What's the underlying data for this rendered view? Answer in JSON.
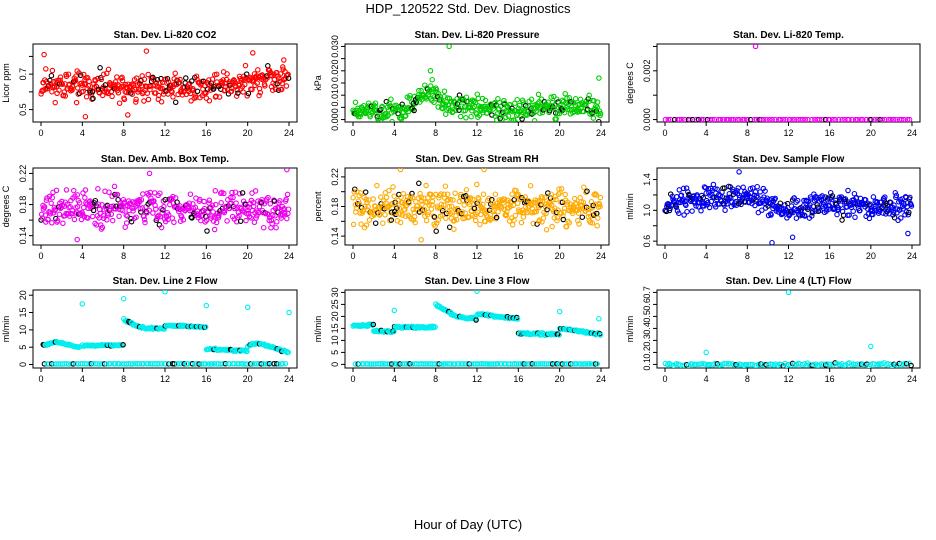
{
  "figure": {
    "title": "HDP_120522  Std. Dev. Diagnostics",
    "bottom_label": "Hour of Day (UTC)"
  },
  "chart_data": [
    {
      "type": "scatter",
      "title": "Stan. Dev. Li-820 CO2",
      "ylabel": "Licor ppm",
      "xlim": [
        0,
        24
      ],
      "xticks": [
        0,
        4,
        8,
        12,
        16,
        20,
        24
      ],
      "ylim": [
        0.43,
        0.87
      ],
      "yticks": [
        0.5,
        0.7
      ],
      "ytick_labels": [
        "0.5",
        "0.7"
      ],
      "ytick_minor": [
        0.6,
        0.8
      ],
      "color": "#ff0000",
      "series": [
        {
          "n": 420,
          "x0": 0,
          "x1": 24,
          "base": [
            [
              0,
              0.65
            ],
            [
              4,
              0.63
            ],
            [
              8,
              0.62
            ],
            [
              12,
              0.63
            ],
            [
              16,
              0.62
            ],
            [
              20,
              0.66
            ],
            [
              24,
              0.68
            ]
          ],
          "spread": 0.07,
          "seed": 11
        }
      ],
      "outliers": [
        [
          0.3,
          0.81
        ],
        [
          4.3,
          0.46
        ],
        [
          8.4,
          0.47
        ],
        [
          10.2,
          0.83
        ],
        [
          20.5,
          0.82
        ],
        [
          23.5,
          0.78
        ]
      ]
    },
    {
      "type": "scatter",
      "title": "Stan. Dev. Li-820 Pressure",
      "ylabel": "kPa",
      "xlim": [
        0,
        24
      ],
      "xticks": [
        0,
        4,
        8,
        12,
        16,
        20,
        24
      ],
      "ylim": [
        -0.001,
        0.031
      ],
      "yticks": [
        0,
        0.005,
        0.01,
        0.015,
        0.02,
        0.025,
        0.03
      ],
      "ytick_labels": [
        "0.000",
        "",
        "0.010",
        "",
        "0.020",
        "",
        "0.030"
      ],
      "color": "#00cc00",
      "series": [
        {
          "n": 420,
          "x0": 0,
          "x1": 24,
          "base": [
            [
              0,
              0.004
            ],
            [
              5,
              0.004
            ],
            [
              7.5,
              0.012
            ],
            [
              9,
              0.006
            ],
            [
              12,
              0.005
            ],
            [
              16,
              0.004
            ],
            [
              20,
              0.005
            ],
            [
              24,
              0.005
            ]
          ],
          "spread": 0.004,
          "seed": 23
        }
      ],
      "outliers": [
        [
          7.5,
          0.02
        ],
        [
          9.3,
          0.03
        ],
        [
          23.8,
          0.017
        ]
      ]
    },
    {
      "type": "scatter",
      "title": "Stan. Dev. Li-820 Temp.",
      "ylabel": "degrees C",
      "xlim": [
        0,
        24
      ],
      "xticks": [
        0,
        4,
        8,
        12,
        16,
        20,
        24
      ],
      "ylim": [
        -0.0001,
        0.0031
      ],
      "yticks": [
        0,
        0.001,
        0.002,
        0.003
      ],
      "ytick_labels": [
        "0.000",
        "",
        "0.002",
        ""
      ],
      "color": "#ee00ee",
      "series": [
        {
          "n": 90,
          "x0": 0,
          "x1": 24,
          "base": [
            [
              0,
              0
            ],
            [
              24,
              0
            ]
          ],
          "spread": 0,
          "seed": 5
        }
      ],
      "outliers": [
        [
          8.8,
          0.003
        ]
      ]
    },
    {
      "type": "scatter",
      "title": "Stan. Dev. Amb. Box Temp.",
      "ylabel": "degrees C",
      "xlim": [
        0,
        24
      ],
      "xticks": [
        0,
        4,
        8,
        12,
        16,
        20,
        24
      ],
      "ylim": [
        0.128,
        0.227
      ],
      "yticks": [
        0.14,
        0.16,
        0.18,
        0.2,
        0.22
      ],
      "ytick_labels": [
        "0.14",
        "",
        "0.18",
        "",
        "0.22"
      ],
      "color": "#ee00ee",
      "series": [
        {
          "n": 420,
          "x0": 0,
          "x1": 24,
          "base": [
            [
              0,
              0.175
            ],
            [
              24,
              0.175
            ]
          ],
          "spread": 0.02,
          "seed": 37
        }
      ],
      "outliers": [
        [
          10.5,
          0.22
        ],
        [
          23.8,
          0.225
        ],
        [
          3.5,
          0.135
        ]
      ]
    },
    {
      "type": "scatter",
      "title": "Stan. Dev. Gas Stream RH",
      "ylabel": "percent",
      "xlim": [
        0,
        24
      ],
      "xticks": [
        0,
        4,
        8,
        12,
        16,
        20,
        24
      ],
      "ylim": [
        0.128,
        0.232
      ],
      "yticks": [
        0.14,
        0.16,
        0.18,
        0.2,
        0.22
      ],
      "ytick_labels": [
        "0.14",
        "",
        "0.18",
        "",
        "0.22"
      ],
      "color": "#ffaa00",
      "series": [
        {
          "n": 460,
          "x0": 0,
          "x1": 24,
          "base": [
            [
              0,
              0.178
            ],
            [
              24,
              0.178
            ]
          ],
          "spread": 0.022,
          "seed": 41
        }
      ],
      "outliers": [
        [
          4.6,
          0.23
        ],
        [
          12.7,
          0.23
        ],
        [
          6.6,
          0.135
        ]
      ]
    },
    {
      "type": "scatter",
      "title": "Stan. Dev. Sample Flow",
      "ylabel": "ml/min",
      "xlim": [
        0,
        24
      ],
      "xticks": [
        0,
        4,
        8,
        12,
        16,
        20,
        24
      ],
      "ylim": [
        0.55,
        1.55
      ],
      "yticks": [
        0.6,
        0.8,
        1.0,
        1.2,
        1.4
      ],
      "ytick_labels": [
        "0.6",
        "",
        "1.0",
        "",
        "1.4"
      ],
      "color": "#0000ee",
      "series": [
        {
          "n": 440,
          "x0": 0,
          "x1": 24,
          "base": [
            [
              0,
              1.1
            ],
            [
              4,
              1.15
            ],
            [
              7,
              1.2
            ],
            [
              9,
              1.15
            ],
            [
              12,
              1.0
            ],
            [
              16,
              1.08
            ],
            [
              20,
              1.05
            ],
            [
              24,
              1.05
            ]
          ],
          "spread": 0.14,
          "seed": 53
        }
      ],
      "outliers": [
        [
          10.4,
          0.58
        ],
        [
          12.4,
          0.65
        ],
        [
          23.6,
          0.7
        ],
        [
          7.2,
          1.5
        ]
      ]
    },
    {
      "type": "scatter",
      "title": "Stan. Dev. Line 2 Flow",
      "ylabel": "ml/min",
      "xlim": [
        0,
        24
      ],
      "xticks": [
        0,
        4,
        8,
        12,
        16,
        20,
        24
      ],
      "ylim": [
        -1,
        21.5
      ],
      "yticks": [
        0,
        5,
        10,
        15,
        20
      ],
      "ytick_labels": [
        "0",
        "5",
        "10",
        "15",
        "20"
      ],
      "color": "#00eeee",
      "series": [
        {
          "n": 40,
          "x0": 0.2,
          "x1": 3.8,
          "base": [
            [
              0.2,
              5.5
            ],
            [
              1.5,
              6.5
            ],
            [
              3.8,
              4.8
            ]
          ],
          "spread": 0.25,
          "seed": 61
        },
        {
          "n": 40,
          "x0": 4,
          "x1": 8,
          "base": [
            [
              4,
              5.5
            ],
            [
              8,
              5.6
            ]
          ],
          "spread": 0.2,
          "seed": 62
        },
        {
          "n": 40,
          "x0": 8,
          "x1": 12,
          "base": [
            [
              8,
              12.8
            ],
            [
              10,
              10.5
            ],
            [
              12,
              10.3
            ]
          ],
          "spread": 0.25,
          "seed": 63
        },
        {
          "n": 40,
          "x0": 12,
          "x1": 16,
          "base": [
            [
              12,
              11.3
            ],
            [
              16,
              10.8
            ]
          ],
          "spread": 0.2,
          "seed": 64
        },
        {
          "n": 40,
          "x0": 16,
          "x1": 20,
          "base": [
            [
              16,
              4.5
            ],
            [
              20,
              3.9
            ]
          ],
          "spread": 0.2,
          "seed": 65
        },
        {
          "n": 40,
          "x0": 20,
          "x1": 24,
          "base": [
            [
              20,
              5.5
            ],
            [
              21,
              6.2
            ],
            [
              24,
              3.5
            ]
          ],
          "spread": 0.25,
          "seed": 66
        },
        {
          "n": 110,
          "x0": 0.3,
          "x1": 23.8,
          "base": [
            [
              0,
              0.2
            ],
            [
              24,
              0.2
            ]
          ],
          "spread": 0.05,
          "seed": 67
        }
      ],
      "outliers": [
        [
          4,
          17.5
        ],
        [
          8,
          19
        ],
        [
          12,
          21
        ],
        [
          16,
          17
        ],
        [
          20,
          16.5
        ],
        [
          24,
          15
        ]
      ]
    },
    {
      "type": "scatter",
      "title": "Stan. Dev. Line 3 Flow",
      "ylabel": "ml/min",
      "xlim": [
        0,
        24
      ],
      "xticks": [
        0,
        4,
        8,
        12,
        16,
        20,
        24
      ],
      "ylim": [
        -1.5,
        31
      ],
      "yticks": [
        0,
        5,
        10,
        15,
        20,
        25,
        30
      ],
      "ytick_labels": [
        "0",
        "5",
        "10",
        "15",
        "20",
        "25",
        "30"
      ],
      "color": "#00eeee",
      "series": [
        {
          "n": 25,
          "x0": 0,
          "x1": 2,
          "base": [
            [
              0,
              16
            ],
            [
              2,
              16.5
            ]
          ],
          "spread": 0.4,
          "seed": 71
        },
        {
          "n": 25,
          "x0": 2,
          "x1": 4,
          "base": [
            [
              2,
              14
            ],
            [
              4,
              13.5
            ]
          ],
          "spread": 0.4,
          "seed": 72
        },
        {
          "n": 45,
          "x0": 4,
          "x1": 8,
          "base": [
            [
              4,
              15.5
            ],
            [
              8,
              15.5
            ]
          ],
          "spread": 0.4,
          "seed": 73
        },
        {
          "n": 45,
          "x0": 8,
          "x1": 12,
          "base": [
            [
              8,
              25
            ],
            [
              10,
              20
            ],
            [
              12,
              19
            ]
          ],
          "spread": 0.5,
          "seed": 74
        },
        {
          "n": 45,
          "x0": 12,
          "x1": 16,
          "base": [
            [
              12,
              21
            ],
            [
              16,
              19
            ]
          ],
          "spread": 0.4,
          "seed": 75
        },
        {
          "n": 45,
          "x0": 16,
          "x1": 20,
          "base": [
            [
              16,
              13
            ],
            [
              20,
              12.5
            ]
          ],
          "spread": 0.4,
          "seed": 76
        },
        {
          "n": 45,
          "x0": 20,
          "x1": 24,
          "base": [
            [
              20,
              15
            ],
            [
              24,
              12.5
            ]
          ],
          "spread": 0.4,
          "seed": 77
        },
        {
          "n": 120,
          "x0": 0.2,
          "x1": 23.8,
          "base": [
            [
              0,
              0.2
            ],
            [
              24,
              0.2
            ]
          ],
          "spread": 0.05,
          "seed": 78
        }
      ],
      "outliers": [
        [
          4,
          22.5
        ],
        [
          12,
          30.5
        ],
        [
          20,
          22
        ],
        [
          23.8,
          19
        ]
      ]
    },
    {
      "type": "scatter",
      "title": "Stan. Dev. Line 4 (LT) Flow",
      "ylabel": "ml/min",
      "xlim": [
        0,
        24
      ],
      "xticks": [
        0,
        4,
        8,
        12,
        16,
        20,
        24
      ],
      "ylim": [
        0.07,
        0.72
      ],
      "yticks": [
        0.1,
        0.2,
        0.3,
        0.4,
        0.5,
        0.6,
        0.7
      ],
      "ytick_labels": [
        "0.1",
        "0.2",
        "0.3",
        "0.4",
        "0.5",
        "0.6",
        "0.7"
      ],
      "color": "#00eeee",
      "series": [
        {
          "n": 130,
          "x0": 0,
          "x1": 24,
          "base": [
            [
              0,
              0.1
            ],
            [
              24,
              0.1
            ]
          ],
          "spread": 0.01,
          "seed": 83
        }
      ],
      "outliers": [
        [
          4,
          0.2
        ],
        [
          12,
          0.7
        ],
        [
          20,
          0.25
        ]
      ]
    }
  ]
}
